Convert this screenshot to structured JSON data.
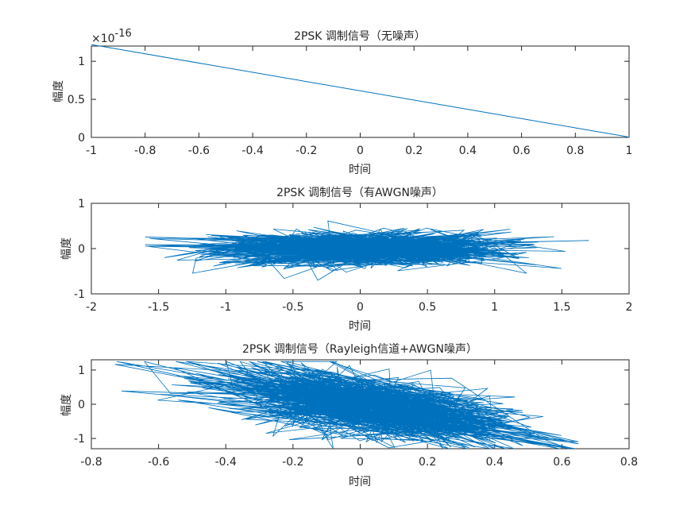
{
  "colors": {
    "line": "#0072BD",
    "axes": "#262626",
    "background": "#ffffff"
  },
  "chart_data": [
    {
      "type": "line",
      "title": "2PSK 调制信号（无噪声）",
      "xlabel": "时间",
      "ylabel": "幅度",
      "xlim": [
        -1,
        1
      ],
      "ylim": [
        0,
        1.2
      ],
      "y_multiplier_label": "×10",
      "y_multiplier_exponent": "-16",
      "xticks": [
        "-1",
        "-0.8",
        "-0.6",
        "-0.4",
        "-0.2",
        "0",
        "0.2",
        "0.4",
        "0.6",
        "0.8",
        "1"
      ],
      "yticks": [
        "0",
        "0.5",
        "1"
      ],
      "grid": false,
      "series": [
        {
          "x": [
            -1,
            0.99,
            1
          ],
          "y": [
            1.22,
            0.01,
            0.0
          ]
        }
      ]
    },
    {
      "type": "line",
      "title": "2PSK 调制信号（有AWGN噪声）",
      "xlabel": "时间",
      "ylabel": "幅度",
      "xlim": [
        -2,
        2
      ],
      "ylim": [
        -1,
        1
      ],
      "xticks": [
        "-2",
        "-1.5",
        "-1",
        "-0.5",
        "0",
        "0.5",
        "1",
        "1.5",
        "2"
      ],
      "yticks": [
        "-1",
        "0",
        "1"
      ],
      "grid": false,
      "series": [
        {
          "description": "dense noisy cloud of ~1000 connected points",
          "x_range": [
            -1.6,
            1.7
          ],
          "y_range": [
            -0.7,
            0.7
          ]
        }
      ]
    },
    {
      "type": "line",
      "title": "2PSK 调制信号（Rayleigh信道+AWGN噪声）",
      "xlabel": "时间",
      "ylabel": "幅度",
      "xlim": [
        -0.8,
        0.8
      ],
      "ylim": [
        -1.3,
        1.3
      ],
      "xticks": [
        "-0.8",
        "-0.6",
        "-0.4",
        "-0.2",
        "0",
        "0.2",
        "0.4",
        "0.6",
        "0.8"
      ],
      "yticks": [
        "-1",
        "0",
        "1"
      ],
      "grid": false,
      "series": [
        {
          "description": "dense cloud of ~1000 connected points, tilted downward to the right",
          "x_range": [
            -0.73,
            0.65
          ],
          "y_range": [
            -1.3,
            1.25
          ]
        }
      ]
    }
  ]
}
